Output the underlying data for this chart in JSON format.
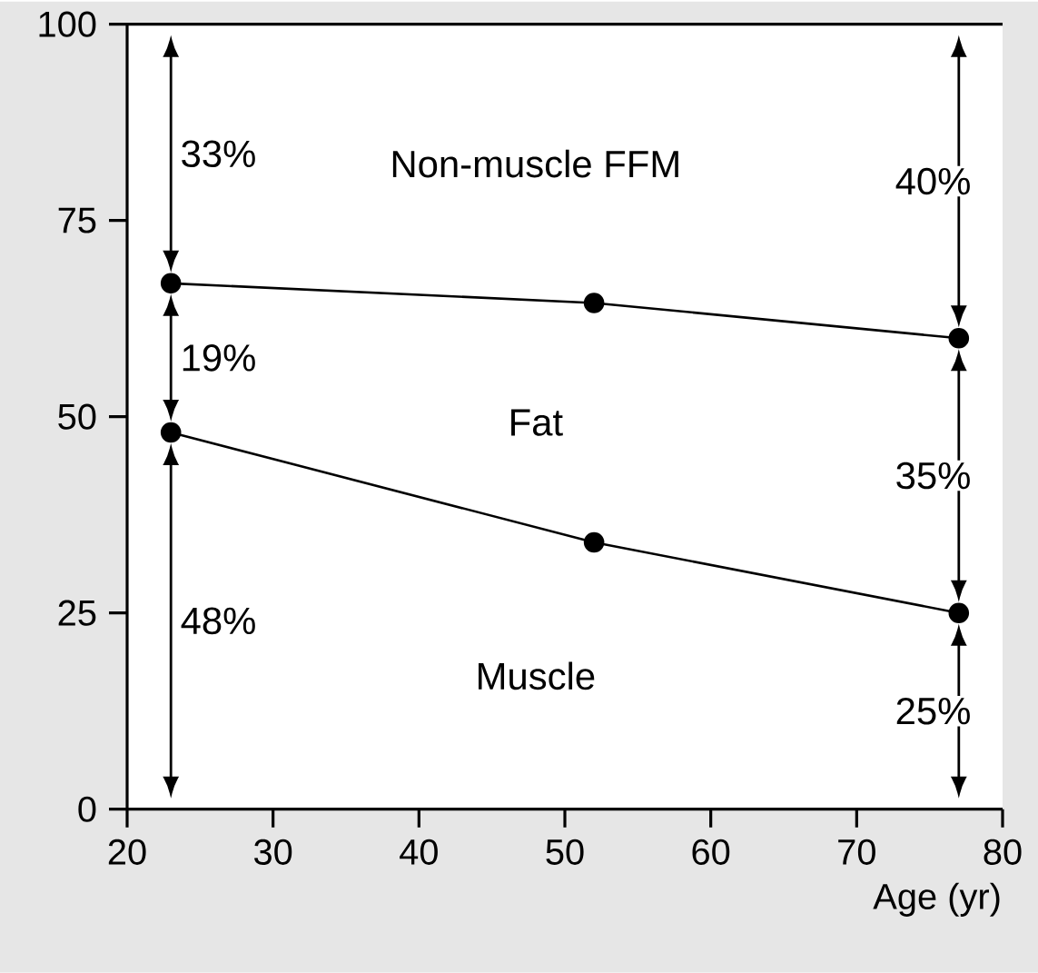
{
  "chart_data": {
    "type": "line",
    "xlabel": "Age (yr)",
    "x": [
      23,
      52,
      77
    ],
    "series": [
      {
        "color": "#000000",
        "values": [
          67,
          64.5,
          60
        ]
      },
      {
        "color": "#000000",
        "values": [
          48,
          34,
          25
        ]
      }
    ],
    "marker": "circle",
    "line_style": "solid",
    "xlim": [
      20,
      80
    ],
    "ylim": [
      0,
      100
    ],
    "xticks": [
      20,
      30,
      40,
      50,
      60,
      70,
      80
    ],
    "yticks": [
      0,
      25,
      50,
      75,
      100
    ],
    "grid": false,
    "annotations": [
      "33%",
      "19%",
      "48%",
      "40%",
      "35%",
      "25%",
      "Non-muscle FFM",
      "Fat",
      "Muscle"
    ]
  }
}
